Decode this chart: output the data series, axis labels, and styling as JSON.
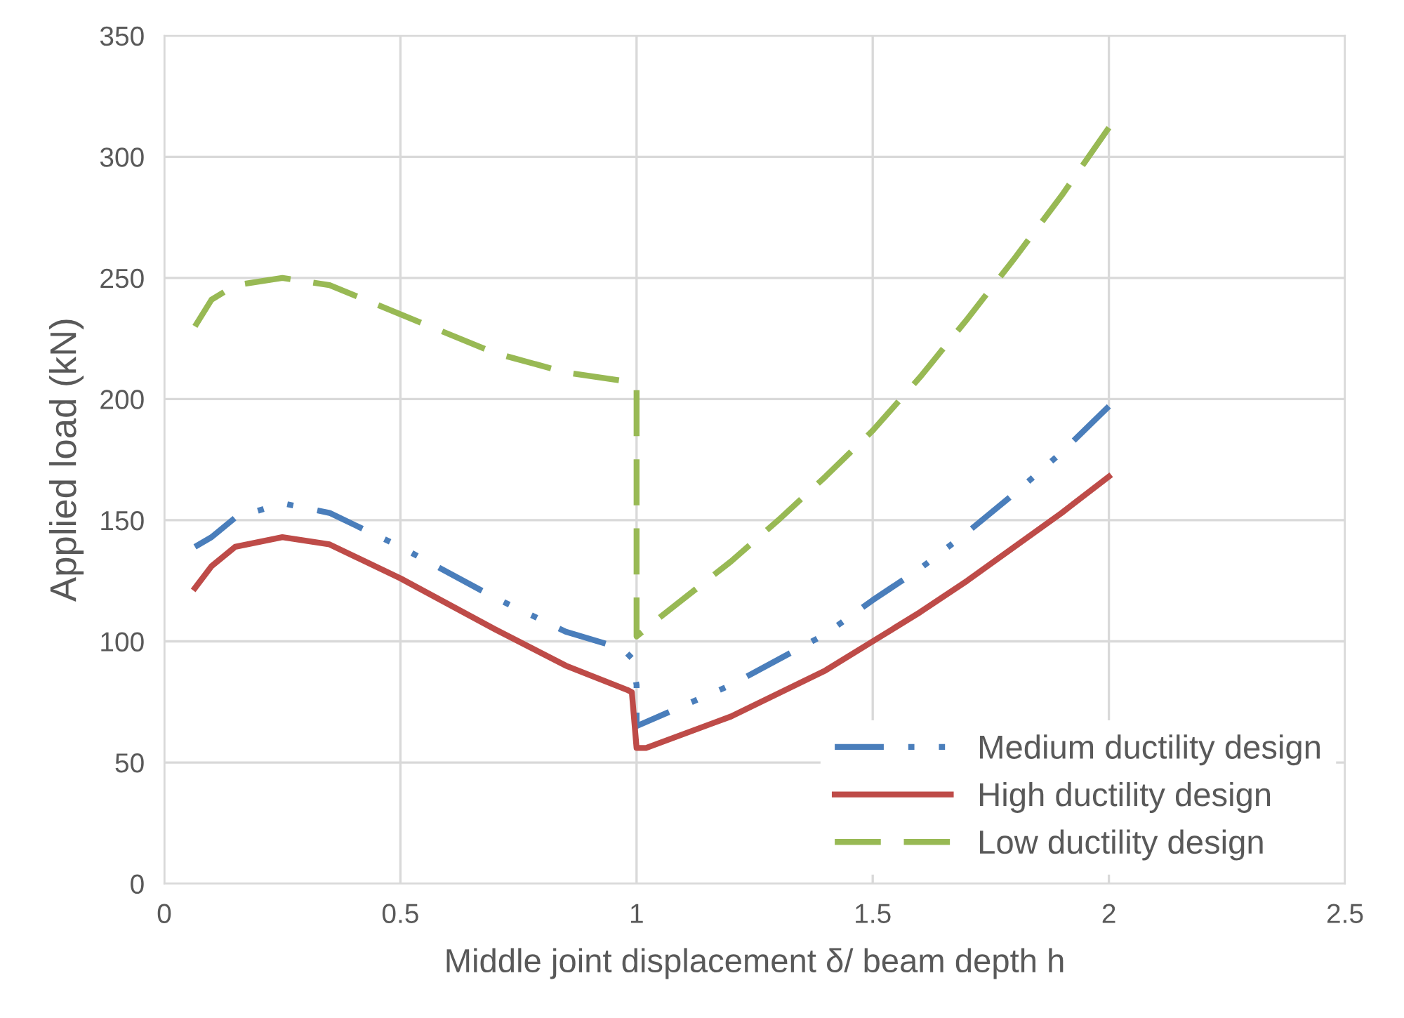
{
  "chart_data": {
    "type": "line",
    "xlabel": "Middle joint displacement δ/ beam depth h",
    "ylabel": "Applied load (kN)",
    "xlim": [
      0,
      2.5
    ],
    "xticks": [
      0,
      0.5,
      1,
      1.5,
      2,
      2.5
    ],
    "ylim": [
      0,
      350
    ],
    "yticks": [
      0,
      50,
      100,
      150,
      200,
      250,
      300,
      350
    ],
    "grid": true,
    "legend": "bottom right",
    "marker": "none",
    "series": [
      {
        "name": "Medium ductility design",
        "color": "#4a7ebb",
        "line_style": "dashdotdot",
        "x": [
          0.065,
          0.1,
          0.15,
          0.25,
          0.35,
          0.5,
          0.7,
          0.85,
          0.97,
          0.99,
          1.0,
          1.0,
          1.2,
          1.4,
          1.5,
          1.6,
          1.7,
          1.8,
          1.9,
          2.0
        ],
        "values": [
          139,
          143,
          151,
          157,
          153,
          139,
          118,
          104,
          97,
          93,
          82,
          65,
          82,
          103,
          117,
          130,
          145,
          161,
          178,
          197
        ]
      },
      {
        "name": "High ductility design",
        "color": "#be4b48",
        "line_style": "solid",
        "x": [
          0.065,
          0.1,
          0.15,
          0.25,
          0.35,
          0.5,
          0.7,
          0.85,
          0.98,
          0.99,
          1.0,
          1.02,
          1.2,
          1.4,
          1.5,
          1.6,
          1.7,
          1.8,
          1.9,
          2.0
        ],
        "values": [
          122,
          131,
          139,
          143,
          140,
          126,
          105,
          90,
          80,
          79,
          56,
          56,
          69,
          88,
          100,
          112,
          125,
          139,
          153,
          168
        ]
      },
      {
        "name": "Low ductility design",
        "color": "#98b954",
        "line_style": "dashed",
        "x": [
          0.065,
          0.1,
          0.15,
          0.25,
          0.35,
          0.5,
          0.7,
          0.85,
          0.99,
          1.0,
          1.0,
          1.05,
          1.2,
          1.3,
          1.4,
          1.5,
          1.6,
          1.7,
          1.8,
          1.9,
          2.0
        ],
        "values": [
          230,
          241,
          247,
          250,
          247,
          235,
          219,
          211,
          207,
          205,
          102,
          110,
          133,
          150,
          168,
          187,
          209,
          233,
          258,
          284,
          312
        ]
      }
    ]
  }
}
